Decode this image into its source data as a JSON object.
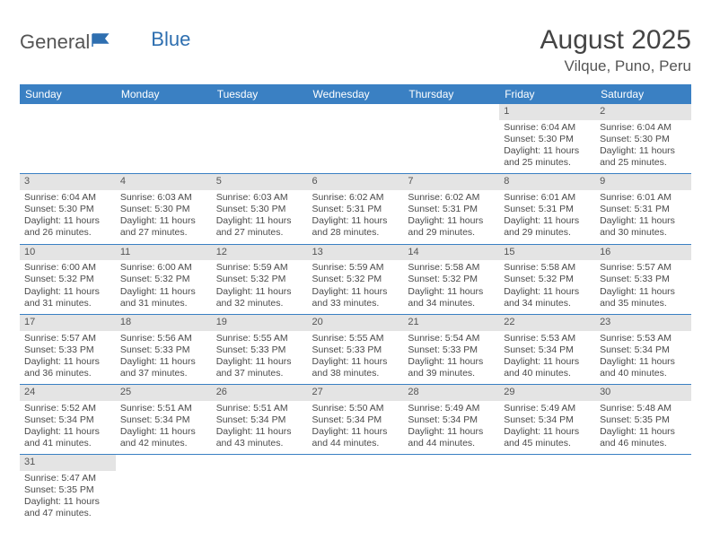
{
  "logo": {
    "text1": "General",
    "text2": "Blue"
  },
  "title": "August 2025",
  "location": "Vilque, Puno, Peru",
  "colors": {
    "header_bg": "#3a80c3",
    "header_fg": "#ffffff",
    "daynum_bg": "#e4e4e4",
    "row_border": "#3a80c3",
    "text": "#4a4a4a"
  },
  "weekdays": [
    "Sunday",
    "Monday",
    "Tuesday",
    "Wednesday",
    "Thursday",
    "Friday",
    "Saturday"
  ],
  "weeks": [
    [
      null,
      null,
      null,
      null,
      null,
      {
        "n": "1",
        "sunrise": "6:04 AM",
        "sunset": "5:30 PM",
        "day": "11 hours and 25 minutes."
      },
      {
        "n": "2",
        "sunrise": "6:04 AM",
        "sunset": "5:30 PM",
        "day": "11 hours and 25 minutes."
      }
    ],
    [
      {
        "n": "3",
        "sunrise": "6:04 AM",
        "sunset": "5:30 PM",
        "day": "11 hours and 26 minutes."
      },
      {
        "n": "4",
        "sunrise": "6:03 AM",
        "sunset": "5:30 PM",
        "day": "11 hours and 27 minutes."
      },
      {
        "n": "5",
        "sunrise": "6:03 AM",
        "sunset": "5:30 PM",
        "day": "11 hours and 27 minutes."
      },
      {
        "n": "6",
        "sunrise": "6:02 AM",
        "sunset": "5:31 PM",
        "day": "11 hours and 28 minutes."
      },
      {
        "n": "7",
        "sunrise": "6:02 AM",
        "sunset": "5:31 PM",
        "day": "11 hours and 29 minutes."
      },
      {
        "n": "8",
        "sunrise": "6:01 AM",
        "sunset": "5:31 PM",
        "day": "11 hours and 29 minutes."
      },
      {
        "n": "9",
        "sunrise": "6:01 AM",
        "sunset": "5:31 PM",
        "day": "11 hours and 30 minutes."
      }
    ],
    [
      {
        "n": "10",
        "sunrise": "6:00 AM",
        "sunset": "5:32 PM",
        "day": "11 hours and 31 minutes."
      },
      {
        "n": "11",
        "sunrise": "6:00 AM",
        "sunset": "5:32 PM",
        "day": "11 hours and 31 minutes."
      },
      {
        "n": "12",
        "sunrise": "5:59 AM",
        "sunset": "5:32 PM",
        "day": "11 hours and 32 minutes."
      },
      {
        "n": "13",
        "sunrise": "5:59 AM",
        "sunset": "5:32 PM",
        "day": "11 hours and 33 minutes."
      },
      {
        "n": "14",
        "sunrise": "5:58 AM",
        "sunset": "5:32 PM",
        "day": "11 hours and 34 minutes."
      },
      {
        "n": "15",
        "sunrise": "5:58 AM",
        "sunset": "5:32 PM",
        "day": "11 hours and 34 minutes."
      },
      {
        "n": "16",
        "sunrise": "5:57 AM",
        "sunset": "5:33 PM",
        "day": "11 hours and 35 minutes."
      }
    ],
    [
      {
        "n": "17",
        "sunrise": "5:57 AM",
        "sunset": "5:33 PM",
        "day": "11 hours and 36 minutes."
      },
      {
        "n": "18",
        "sunrise": "5:56 AM",
        "sunset": "5:33 PM",
        "day": "11 hours and 37 minutes."
      },
      {
        "n": "19",
        "sunrise": "5:55 AM",
        "sunset": "5:33 PM",
        "day": "11 hours and 37 minutes."
      },
      {
        "n": "20",
        "sunrise": "5:55 AM",
        "sunset": "5:33 PM",
        "day": "11 hours and 38 minutes."
      },
      {
        "n": "21",
        "sunrise": "5:54 AM",
        "sunset": "5:33 PM",
        "day": "11 hours and 39 minutes."
      },
      {
        "n": "22",
        "sunrise": "5:53 AM",
        "sunset": "5:34 PM",
        "day": "11 hours and 40 minutes."
      },
      {
        "n": "23",
        "sunrise": "5:53 AM",
        "sunset": "5:34 PM",
        "day": "11 hours and 40 minutes."
      }
    ],
    [
      {
        "n": "24",
        "sunrise": "5:52 AM",
        "sunset": "5:34 PM",
        "day": "11 hours and 41 minutes."
      },
      {
        "n": "25",
        "sunrise": "5:51 AM",
        "sunset": "5:34 PM",
        "day": "11 hours and 42 minutes."
      },
      {
        "n": "26",
        "sunrise": "5:51 AM",
        "sunset": "5:34 PM",
        "day": "11 hours and 43 minutes."
      },
      {
        "n": "27",
        "sunrise": "5:50 AM",
        "sunset": "5:34 PM",
        "day": "11 hours and 44 minutes."
      },
      {
        "n": "28",
        "sunrise": "5:49 AM",
        "sunset": "5:34 PM",
        "day": "11 hours and 44 minutes."
      },
      {
        "n": "29",
        "sunrise": "5:49 AM",
        "sunset": "5:34 PM",
        "day": "11 hours and 45 minutes."
      },
      {
        "n": "30",
        "sunrise": "5:48 AM",
        "sunset": "5:35 PM",
        "day": "11 hours and 46 minutes."
      }
    ],
    [
      {
        "n": "31",
        "sunrise": "5:47 AM",
        "sunset": "5:35 PM",
        "day": "11 hours and 47 minutes."
      },
      null,
      null,
      null,
      null,
      null,
      null
    ]
  ],
  "labels": {
    "sunrise": "Sunrise: ",
    "sunset": "Sunset: ",
    "daylight": "Daylight: "
  }
}
